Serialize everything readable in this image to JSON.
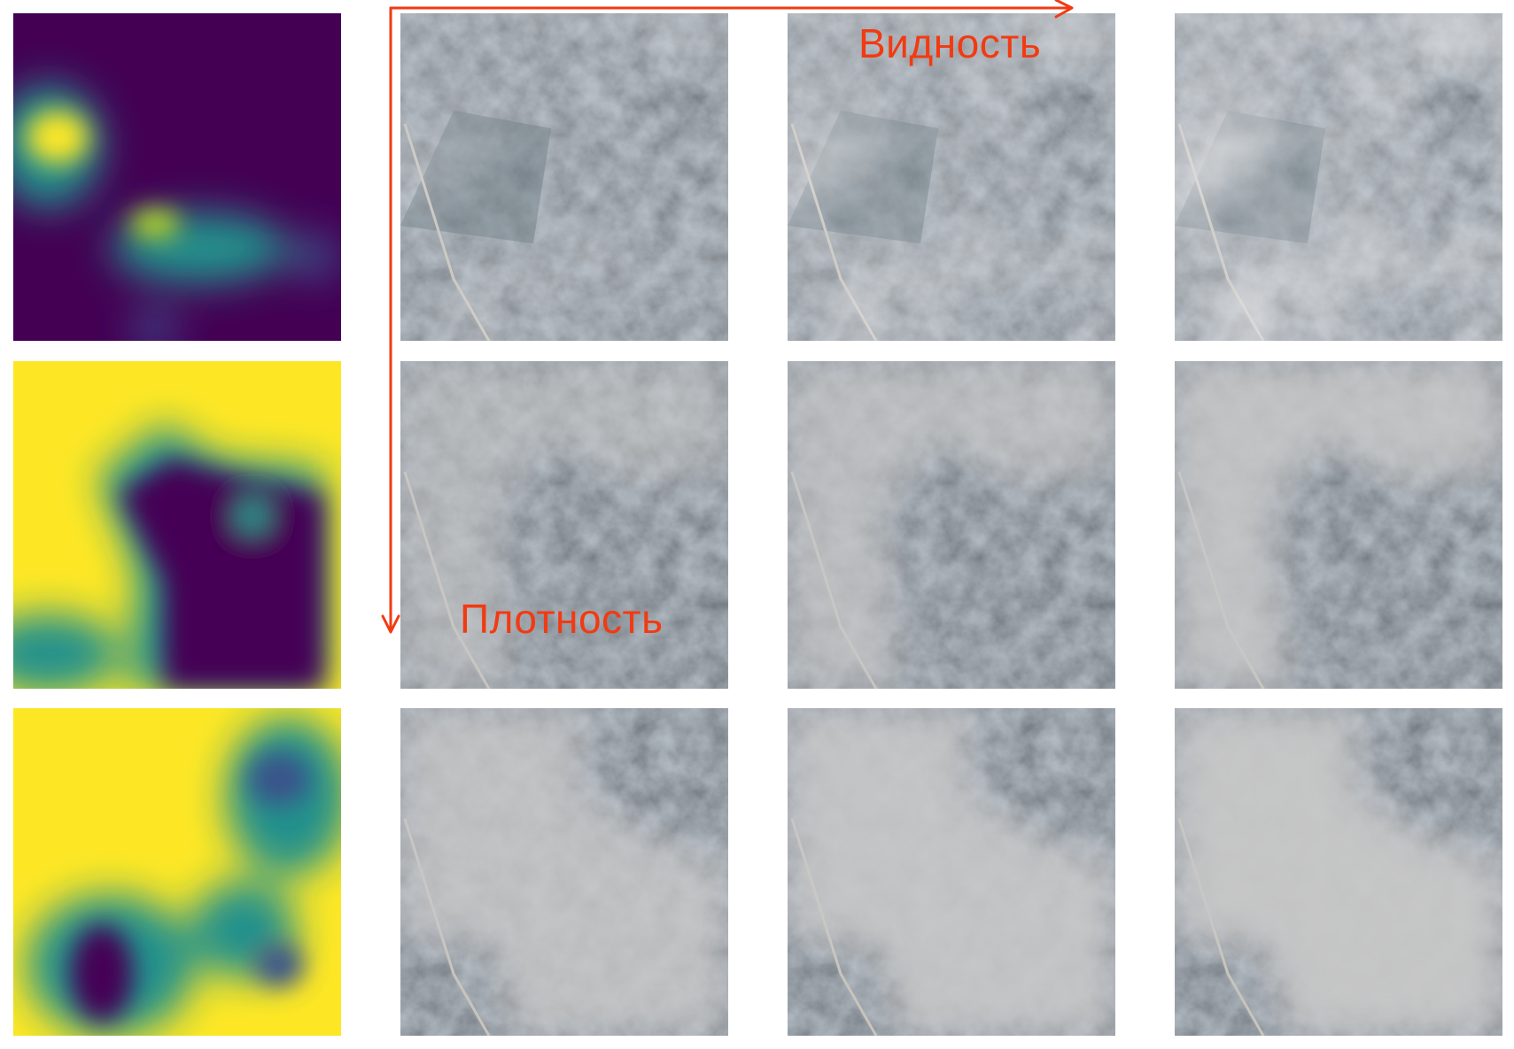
{
  "axes": {
    "horizontal_label": "Видность",
    "vertical_label": "Плотность",
    "arrow_color": "#f23a12"
  },
  "grid": {
    "rows": 3,
    "columns": 4,
    "first_column": "density-map",
    "other_columns": "satellite-image-with-haze",
    "colormap": [
      "#440154",
      "#3b528b",
      "#21918c",
      "#5ec962",
      "#fde725"
    ]
  },
  "haze_levels": [
    [
      0.3,
      0.52,
      0.72
    ],
    [
      0.6,
      0.72,
      0.85
    ],
    [
      0.8,
      0.88,
      0.94
    ]
  ]
}
